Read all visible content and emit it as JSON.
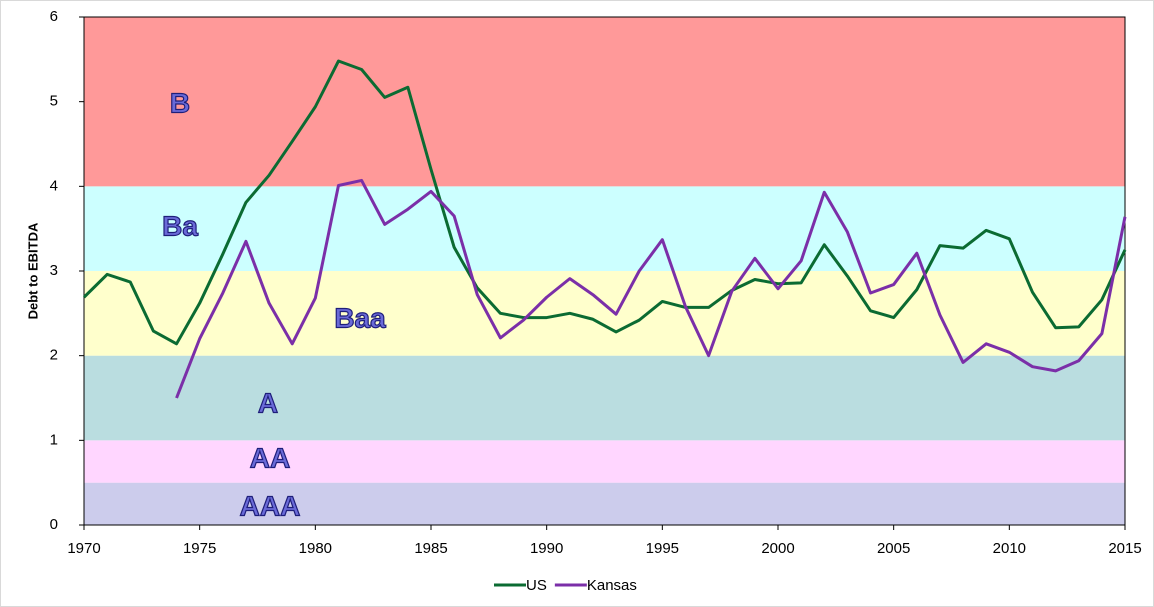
{
  "chart_data": {
    "type": "line",
    "y_label": "Debt to EBITDA",
    "x": [
      1970,
      1971,
      1972,
      1973,
      1974,
      1975,
      1976,
      1977,
      1978,
      1979,
      1980,
      1981,
      1982,
      1983,
      1984,
      1985,
      1986,
      1987,
      1988,
      1989,
      1990,
      1991,
      1992,
      1993,
      1994,
      1995,
      1996,
      1997,
      1998,
      1999,
      2000,
      2001,
      2002,
      2003,
      2004,
      2005,
      2006,
      2007,
      2008,
      2009,
      2010,
      2011,
      2012,
      2013,
      2014,
      2015
    ],
    "series": [
      {
        "name": "US",
        "color": "#0b6b32",
        "values": [
          2.69,
          2.96,
          2.87,
          2.29,
          2.14,
          2.62,
          3.2,
          3.81,
          4.13,
          4.53,
          4.94,
          5.48,
          5.38,
          5.05,
          5.17,
          4.2,
          3.28,
          2.8,
          2.5,
          2.45,
          2.45,
          2.5,
          2.43,
          2.28,
          2.42,
          2.64,
          2.57,
          2.57,
          2.77,
          2.9,
          2.85,
          2.86,
          3.31,
          2.94,
          2.53,
          2.45,
          2.78,
          3.3,
          3.27,
          3.48,
          3.38,
          2.75,
          2.33,
          2.34,
          2.66,
          3.25
        ]
      },
      {
        "name": "Kansas",
        "color": "#7b2fa8",
        "values": [
          null,
          null,
          null,
          null,
          1.5,
          2.2,
          2.74,
          3.35,
          2.62,
          2.14,
          2.68,
          4.01,
          4.07,
          3.55,
          3.73,
          3.94,
          3.65,
          2.72,
          2.21,
          2.42,
          2.69,
          2.91,
          2.72,
          2.49,
          3.0,
          3.37,
          2.58,
          2.0,
          2.76,
          3.15,
          2.79,
          3.12,
          3.93,
          3.46,
          2.74,
          2.84,
          3.21,
          2.48,
          1.92,
          2.14,
          2.04,
          1.87,
          1.82,
          1.94,
          2.26,
          3.64
        ]
      }
    ],
    "bands": [
      {
        "label": "AAA",
        "from": 0,
        "to": 0.5,
        "color": "#ccccec"
      },
      {
        "label": "AA",
        "from": 0.5,
        "to": 1,
        "color": "#ffd6ff"
      },
      {
        "label": "A",
        "from": 1,
        "to": 2,
        "color": "#badde0"
      },
      {
        "label": "Baa",
        "from": 2,
        "to": 3,
        "color": "#ffffcc"
      },
      {
        "label": "Ba",
        "from": 3,
        "to": 4,
        "color": "#ccffff"
      },
      {
        "label": "B",
        "from": 4,
        "to": 6,
        "color": "#ff9999"
      }
    ],
    "xlim": [
      1970,
      2015
    ],
    "xticks": [
      1970,
      1975,
      1980,
      1985,
      1990,
      1995,
      2000,
      2005,
      2010,
      2015
    ],
    "ylim": [
      0,
      6
    ],
    "yticks": [
      0,
      1,
      2,
      3,
      4,
      5,
      6
    ],
    "legend": "bottom"
  }
}
